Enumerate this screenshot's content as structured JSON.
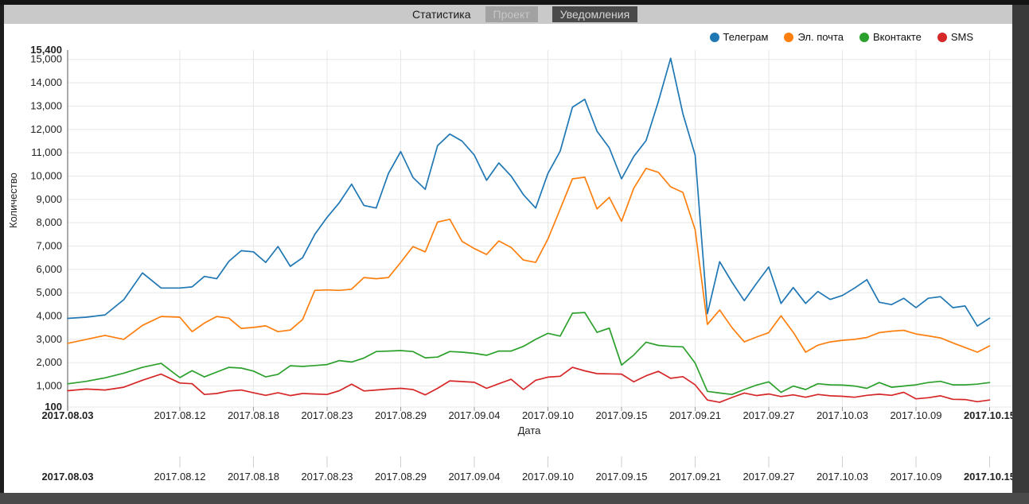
{
  "header": {
    "tabs": [
      {
        "label": "Статистика",
        "state": "current"
      },
      {
        "label": "Проект",
        "state": "inactive"
      },
      {
        "label": "Уведомления",
        "state": "selected"
      }
    ]
  },
  "colors": {
    "header_bar": "#c9c9c9",
    "inactive_tab_bg": "#a2a2a2",
    "selected_tab_bg": "#4a4a4a",
    "plot_background": "#ffffff",
    "gridline": "#e7e7e7",
    "window_edge": "#3a3a3a"
  },
  "chart_data": {
    "type": "line",
    "title": "",
    "xlabel": "Дата",
    "ylabel": "Количество",
    "ylim": [
      100,
      15400
    ],
    "grid": true,
    "legend_position": "top-right",
    "secondary_x_axis_below": true,
    "y_ticks": [
      {
        "value": 15400,
        "label": "15,400",
        "bold": true
      },
      {
        "value": 15000,
        "label": "15,000",
        "bold": false
      },
      {
        "value": 14000,
        "label": "14,000",
        "bold": false
      },
      {
        "value": 13000,
        "label": "13,000",
        "bold": false
      },
      {
        "value": 12000,
        "label": "12,000",
        "bold": false
      },
      {
        "value": 11000,
        "label": "11,000",
        "bold": false
      },
      {
        "value": 10000,
        "label": "10,000",
        "bold": false
      },
      {
        "value": 9000,
        "label": "9,000",
        "bold": false
      },
      {
        "value": 8000,
        "label": "8,000",
        "bold": false
      },
      {
        "value": 7000,
        "label": "7,000",
        "bold": false
      },
      {
        "value": 6000,
        "label": "6,000",
        "bold": false
      },
      {
        "value": 5000,
        "label": "5,000",
        "bold": false
      },
      {
        "value": 4000,
        "label": "4,000",
        "bold": false
      },
      {
        "value": 3000,
        "label": "3,000",
        "bold": false
      },
      {
        "value": 2000,
        "label": "2,000",
        "bold": false
      },
      {
        "value": 1000,
        "label": "1,000",
        "bold": false
      },
      {
        "value": 100,
        "label": "100",
        "bold": true
      }
    ],
    "x_ticks": [
      {
        "label": "2017.08.03",
        "bold": true
      },
      {
        "label": "2017.08.12",
        "bold": false
      },
      {
        "label": "2017.08.18",
        "bold": false
      },
      {
        "label": "2017.08.23",
        "bold": false
      },
      {
        "label": "2017.08.29",
        "bold": false
      },
      {
        "label": "2017.09.04",
        "bold": false
      },
      {
        "label": "2017.09.10",
        "bold": false
      },
      {
        "label": "2017.09.15",
        "bold": false
      },
      {
        "label": "2017.09.21",
        "bold": false
      },
      {
        "label": "2017.09.27",
        "bold": false
      },
      {
        "label": "2017.10.03",
        "bold": false
      },
      {
        "label": "2017.10.09",
        "bold": false
      },
      {
        "label": "2017.10.15",
        "bold": true
      }
    ],
    "series": [
      {
        "name": "Телеграм",
        "color": "#1f77b4",
        "values": [
          3900,
          3950,
          4050,
          4700,
          5850,
          5200,
          5200,
          5250,
          5700,
          5600,
          6350,
          6800,
          6750,
          6300,
          6980,
          6130,
          6500,
          7500,
          8230,
          8860,
          9650,
          8740,
          8630,
          10110,
          11050,
          9940,
          9430,
          11300,
          11800,
          11500,
          10900,
          9820,
          10560,
          10000,
          9200,
          8630,
          10110,
          11070,
          12950,
          13290,
          11920,
          11210,
          9880,
          10840,
          11520,
          13200,
          15050,
          12670,
          10900,
          4100,
          6330,
          5450,
          4660,
          5400,
          6100,
          4540,
          5220,
          4540,
          5050,
          4710,
          4880,
          5200,
          5560,
          4590,
          4490,
          4760,
          4360,
          4760,
          4830,
          4360,
          4430,
          3570,
          3910
        ]
      },
      {
        "name": "Эл. почта",
        "color": "#ff7f0e",
        "values": [
          2830,
          3000,
          3170,
          3000,
          3600,
          3980,
          3950,
          3330,
          3700,
          3980,
          3910,
          3470,
          3510,
          3580,
          3330,
          3400,
          3850,
          5100,
          5120,
          5100,
          5150,
          5650,
          5600,
          5650,
          6300,
          6980,
          6750,
          8030,
          8150,
          7200,
          6890,
          6640,
          7220,
          6940,
          6400,
          6300,
          7300,
          8580,
          9880,
          9950,
          8590,
          9090,
          8060,
          9480,
          10330,
          10160,
          9540,
          9300,
          7700,
          3640,
          4260,
          3500,
          2890,
          3100,
          3290,
          4010,
          3300,
          2450,
          2750,
          2890,
          2960,
          3000,
          3080,
          3290,
          3350,
          3390,
          3230,
          3150,
          3060,
          2850,
          2650,
          2450,
          2720
        ]
      },
      {
        "name": "Вконтакте",
        "color": "#2ca02c",
        "values": [
          1095,
          1200,
          1350,
          1550,
          1800,
          1970,
          1360,
          1660,
          1390,
          1600,
          1800,
          1770,
          1640,
          1390,
          1500,
          1870,
          1840,
          1880,
          1920,
          2090,
          2030,
          2200,
          2480,
          2500,
          2520,
          2480,
          2210,
          2240,
          2480,
          2450,
          2400,
          2320,
          2500,
          2500,
          2700,
          3000,
          3260,
          3140,
          4120,
          4150,
          3300,
          3480,
          1900,
          2330,
          2880,
          2740,
          2700,
          2680,
          1980,
          770,
          700,
          640,
          850,
          1040,
          1180,
          730,
          1000,
          850,
          1100,
          1050,
          1040,
          1000,
          900,
          1150,
          950,
          1000,
          1050,
          1150,
          1200,
          1050,
          1050,
          1080,
          1150
        ]
      },
      {
        "name": "SMS",
        "color": "#d62728",
        "values": [
          800,
          870,
          830,
          950,
          1250,
          1510,
          1130,
          1100,
          640,
          680,
          790,
          830,
          710,
          600,
          710,
          590,
          680,
          660,
          640,
          800,
          1080,
          790,
          830,
          870,
          900,
          850,
          620,
          900,
          1220,
          1190,
          1160,
          900,
          1100,
          1290,
          850,
          1250,
          1380,
          1420,
          1800,
          1650,
          1530,
          1520,
          1510,
          1180,
          1440,
          1630,
          1330,
          1400,
          1050,
          400,
          300,
          510,
          700,
          590,
          660,
          550,
          620,
          520,
          640,
          580,
          560,
          520,
          600,
          650,
          600,
          730,
          450,
          500,
          580,
          430,
          420,
          330,
          400
        ]
      }
    ]
  }
}
